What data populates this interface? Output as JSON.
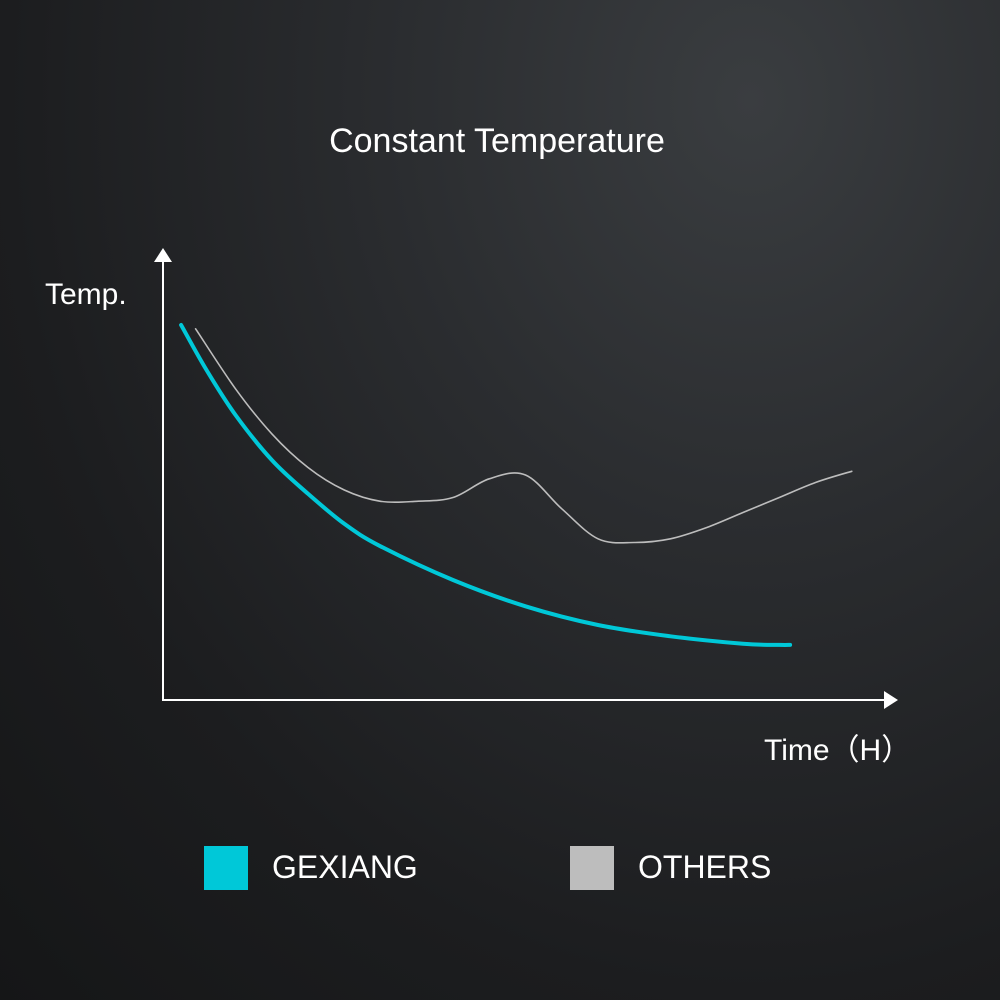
{
  "chart_data": {
    "type": "line",
    "title": "Constant Temperature",
    "xlabel": "Time（H）",
    "ylabel": "Temp.",
    "grid": false,
    "legend_placement": "bottom",
    "xlim": [
      0,
      100
    ],
    "ylim": [
      0,
      100
    ],
    "series": [
      {
        "name": "GEXIANG",
        "color": "#00c8d8",
        "x": [
          2.5,
          6,
          10,
          15,
          20,
          25,
          30,
          40,
          50,
          60,
          70,
          80,
          85,
          86.5
        ],
        "y": [
          100,
          88,
          76,
          64,
          55,
          47,
          41,
          32,
          25,
          20,
          17,
          15,
          14.7,
          14.7
        ]
      },
      {
        "name": "OTHERS",
        "color": "#bdbdbd",
        "x": [
          4.5,
          10,
          15,
          20,
          25,
          30,
          35,
          40,
          45,
          50,
          55,
          60,
          65,
          70,
          75,
          80,
          85,
          90,
          95
        ],
        "y": [
          99,
          83,
          71,
          62,
          56,
          53,
          53,
          54,
          59,
          60,
          51,
          43,
          42,
          43,
          46,
          50,
          54,
          58,
          61
        ]
      }
    ]
  }
}
